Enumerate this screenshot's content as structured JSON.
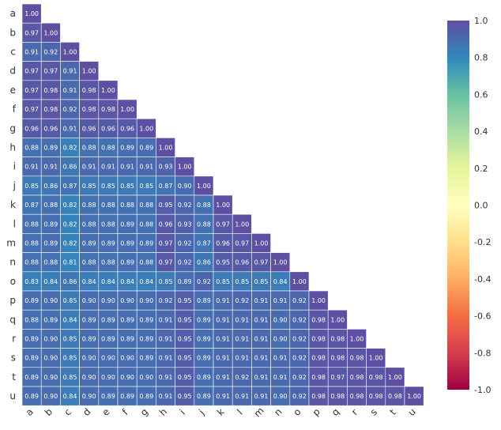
{
  "chart_data": {
    "type": "heatmap",
    "title": "",
    "xlabel": "",
    "ylabel": "",
    "triangle": "lower",
    "colormap": "Spectral",
    "colormap_stops": [
      "#9e0142",
      "#d53e4f",
      "#f46d43",
      "#fdae61",
      "#fee08b",
      "#ffffbf",
      "#e6f598",
      "#abdda4",
      "#66c2a5",
      "#3288bd",
      "#5e4fa2"
    ],
    "vmin": -1.0,
    "vmax": 1.0,
    "categories": [
      "a",
      "b",
      "c",
      "d",
      "e",
      "f",
      "g",
      "h",
      "i",
      "j",
      "k",
      "l",
      "m",
      "n",
      "o",
      "p",
      "q",
      "r",
      "s",
      "t",
      "u"
    ],
    "values": [
      [
        1.0
      ],
      [
        0.97,
        1.0
      ],
      [
        0.91,
        0.92,
        1.0
      ],
      [
        0.97,
        0.97,
        0.91,
        1.0
      ],
      [
        0.97,
        0.98,
        0.91,
        0.98,
        1.0
      ],
      [
        0.97,
        0.98,
        0.92,
        0.98,
        0.98,
        1.0
      ],
      [
        0.96,
        0.96,
        0.91,
        0.96,
        0.96,
        0.96,
        1.0
      ],
      [
        0.88,
        0.89,
        0.82,
        0.88,
        0.88,
        0.89,
        0.89,
        1.0
      ],
      [
        0.91,
        0.91,
        0.86,
        0.91,
        0.91,
        0.91,
        0.91,
        0.93,
        1.0
      ],
      [
        0.85,
        0.86,
        0.87,
        0.85,
        0.85,
        0.85,
        0.85,
        0.87,
        0.9,
        1.0
      ],
      [
        0.87,
        0.88,
        0.82,
        0.88,
        0.88,
        0.88,
        0.88,
        0.95,
        0.92,
        0.88,
        1.0
      ],
      [
        0.88,
        0.89,
        0.82,
        0.88,
        0.88,
        0.89,
        0.88,
        0.96,
        0.93,
        0.88,
        0.97,
        1.0
      ],
      [
        0.88,
        0.89,
        0.82,
        0.89,
        0.89,
        0.89,
        0.89,
        0.97,
        0.92,
        0.87,
        0.96,
        0.97,
        1.0
      ],
      [
        0.88,
        0.88,
        0.81,
        0.88,
        0.88,
        0.89,
        0.88,
        0.97,
        0.92,
        0.86,
        0.95,
        0.96,
        0.97,
        1.0
      ],
      [
        0.83,
        0.84,
        0.86,
        0.84,
        0.84,
        0.84,
        0.84,
        0.85,
        0.89,
        0.92,
        0.85,
        0.85,
        0.85,
        0.84,
        1.0
      ],
      [
        0.89,
        0.9,
        0.85,
        0.9,
        0.9,
        0.9,
        0.9,
        0.92,
        0.95,
        0.89,
        0.91,
        0.92,
        0.91,
        0.91,
        0.92,
        1.0
      ],
      [
        0.88,
        0.89,
        0.84,
        0.89,
        0.89,
        0.89,
        0.89,
        0.91,
        0.95,
        0.89,
        0.91,
        0.91,
        0.91,
        0.9,
        0.92,
        0.98,
        1.0
      ],
      [
        0.89,
        0.9,
        0.85,
        0.89,
        0.89,
        0.89,
        0.89,
        0.91,
        0.95,
        0.89,
        0.91,
        0.91,
        0.91,
        0.9,
        0.92,
        0.98,
        0.98,
        1.0
      ],
      [
        0.89,
        0.9,
        0.85,
        0.9,
        0.9,
        0.9,
        0.89,
        0.91,
        0.95,
        0.89,
        0.91,
        0.91,
        0.91,
        0.91,
        0.92,
        0.98,
        0.98,
        0.98,
        1.0
      ],
      [
        0.89,
        0.9,
        0.85,
        0.9,
        0.9,
        0.9,
        0.9,
        0.91,
        0.95,
        0.89,
        0.91,
        0.92,
        0.91,
        0.91,
        0.92,
        0.98,
        0.97,
        0.98,
        0.98,
        1.0
      ],
      [
        0.89,
        0.9,
        0.84,
        0.9,
        0.89,
        0.89,
        0.89,
        0.91,
        0.95,
        0.89,
        0.91,
        0.91,
        0.91,
        0.9,
        0.92,
        0.98,
        0.98,
        0.98,
        0.98,
        0.98,
        1.0
      ]
    ],
    "colorbar": {
      "ticks": [
        "1.0",
        "0.8",
        "0.6",
        "0.4",
        "0.2",
        "0.0",
        "-0.2",
        "-0.4",
        "-0.6",
        "-0.8",
        "-1.0"
      ],
      "tick_values": [
        1.0,
        0.8,
        0.6,
        0.4,
        0.2,
        0.0,
        -0.2,
        -0.4,
        -0.6,
        -0.8,
        -1.0
      ]
    },
    "grid": false,
    "legend": "colorbar-right"
  }
}
